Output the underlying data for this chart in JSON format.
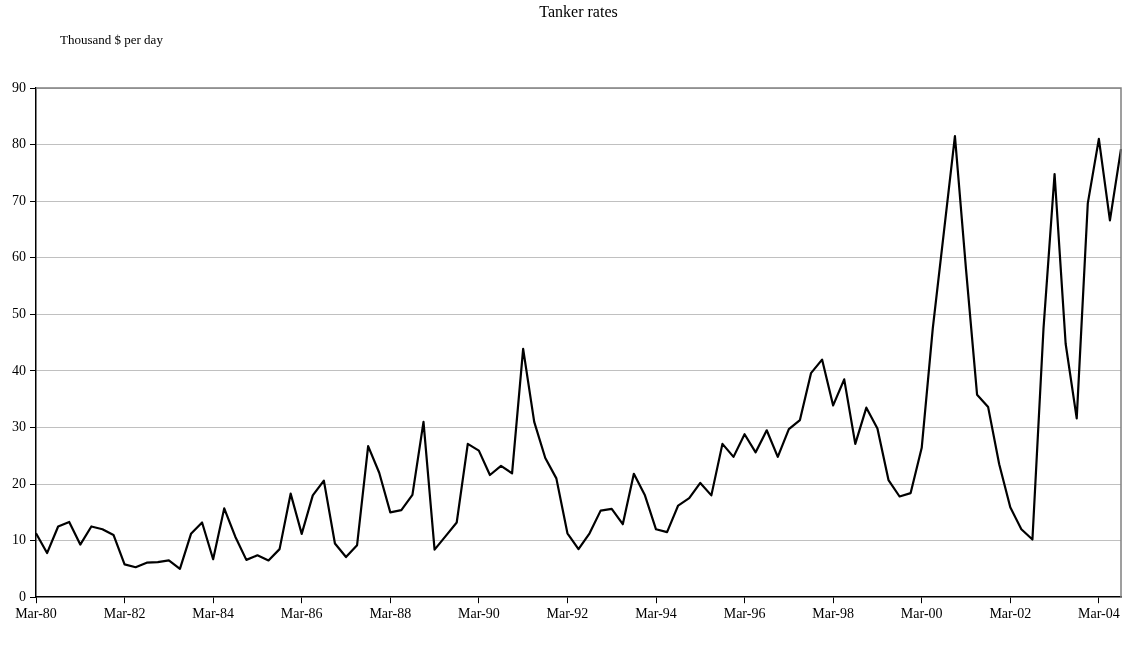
{
  "chart_data": {
    "type": "line",
    "title": "Tanker rates",
    "ylabel": "Thousand $ per day",
    "categories": [
      "Mar-80",
      null,
      null,
      null,
      null,
      null,
      null,
      null,
      "Mar-82",
      null,
      null,
      null,
      null,
      null,
      null,
      null,
      "Mar-84",
      null,
      null,
      null,
      null,
      null,
      null,
      null,
      "Mar-86",
      null,
      null,
      null,
      null,
      null,
      null,
      null,
      "Mar-88",
      null,
      null,
      null,
      null,
      null,
      null,
      null,
      "Mar-90",
      null,
      null,
      null,
      null,
      null,
      null,
      null,
      "Mar-92",
      null,
      null,
      null,
      null,
      null,
      null,
      null,
      "Mar-94",
      null,
      null,
      null,
      null,
      null,
      null,
      null,
      "Mar-96",
      null,
      null,
      null,
      null,
      null,
      null,
      null,
      "Mar-98",
      null,
      null,
      null,
      null,
      null,
      null,
      null,
      "Mar-00",
      null,
      null,
      null,
      null,
      null,
      null,
      null,
      "Mar-02",
      null,
      null,
      null,
      null,
      null,
      null,
      null,
      "Mar-04",
      null,
      null
    ],
    "series": [
      {
        "color": "#000000",
        "values": [
          11.3,
          7.8,
          12.5,
          13.3,
          9.3,
          12.5,
          12.0,
          11.0,
          5.8,
          5.3,
          6.1,
          6.2,
          6.5,
          5.0,
          11.2,
          13.2,
          6.7,
          15.7,
          10.7,
          6.6,
          7.4,
          6.5,
          8.5,
          18.3,
          11.2,
          18.0,
          20.6,
          9.5,
          7.1,
          9.2,
          26.7,
          22.0,
          15.0,
          15.4,
          18.1,
          31.0,
          8.4,
          10.8,
          13.2,
          27.1,
          25.9,
          21.6,
          23.2,
          21.9,
          43.9,
          31.0,
          24.6,
          21.0,
          11.3,
          8.5,
          11.3,
          15.3,
          15.6,
          12.9,
          21.8,
          18.0,
          12.0,
          11.5,
          16.2,
          17.5,
          20.2,
          18.0,
          27.1,
          24.8,
          28.8,
          25.6,
          29.5,
          24.8,
          29.7,
          31.3,
          39.6,
          42.0,
          33.9,
          38.5,
          27.1,
          33.5,
          29.8,
          20.7,
          17.8,
          18.4,
          26.4,
          47.5,
          64.5,
          81.5,
          58.0,
          35.8,
          33.6,
          23.5,
          15.9,
          12.0,
          10.2,
          47.5,
          74.8,
          44.8,
          31.6,
          69.6,
          81.0,
          66.6,
          79.2
        ]
      }
    ],
    "ylim": [
      0,
      90
    ],
    "yticks": [
      0,
      10,
      20,
      30,
      40,
      50,
      60,
      70,
      80,
      90
    ],
    "grid": "y",
    "marker": "none",
    "line_style": "solid"
  }
}
